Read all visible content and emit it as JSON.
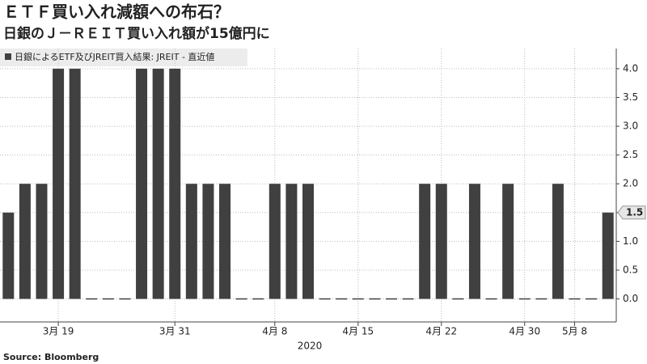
{
  "chart_data": {
    "type": "bar",
    "title": "ＥＴＦ買い入れ減額への布石？",
    "subtitle": "日銀のＪ－ＲＥＩＴ買い入れ額が15億円に",
    "source": "Source: Bloomberg",
    "x_axis_label": "2020",
    "categories": [
      null,
      null,
      null,
      "3月 19",
      null,
      null,
      null,
      null,
      null,
      null,
      "3月 31",
      null,
      null,
      null,
      null,
      null,
      "4月 8",
      null,
      null,
      null,
      null,
      "4月 15",
      null,
      null,
      null,
      null,
      "4月 22",
      null,
      null,
      null,
      null,
      "4月 30",
      null,
      null,
      "5月 8",
      null,
      null
    ],
    "series": [
      {
        "name": "日銀によるETF及びJREIT買入結果: JREIT - 直近値",
        "color": "#404040",
        "values": [
          1.5,
          2,
          2,
          4,
          4,
          0,
          0,
          0,
          4,
          4,
          4,
          2,
          2,
          2,
          0,
          0,
          2,
          2,
          2,
          0,
          0,
          0,
          0,
          0,
          0,
          2,
          2,
          0,
          2,
          0,
          2,
          0,
          0,
          2,
          0,
          0,
          1.5
        ]
      }
    ],
    "ylim": [
      -0.4,
      4.35
    ],
    "yticks": [
      {
        "value": 0,
        "label": "0.0"
      },
      {
        "value": 0.5,
        "label": "0.5"
      },
      {
        "value": 1,
        "label": "1.0"
      },
      {
        "value": 1.5,
        "label": "1.5"
      },
      {
        "value": 2,
        "label": "2.0"
      },
      {
        "value": 2.5,
        "label": "2.5"
      },
      {
        "value": 3,
        "label": "3.0"
      },
      {
        "value": 3.5,
        "label": "3.5"
      },
      {
        "value": 4,
        "label": "4.0"
      }
    ],
    "grid": true
  }
}
